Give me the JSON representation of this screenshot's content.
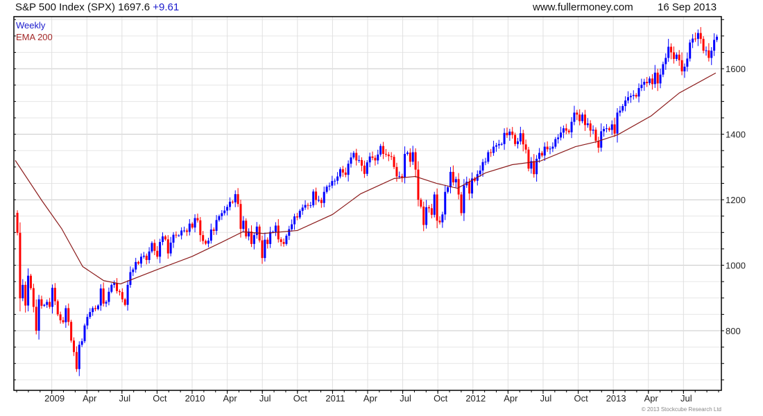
{
  "header": {
    "instrument": "S&P 500 Index (SPX)",
    "last": "1697.6",
    "change": "+9.61",
    "site": "www.fullermoney.com",
    "date": "16 Sep 2013"
  },
  "copyright": "© 2013 Stockcube Research Ltd",
  "colors": {
    "up": "#0000ff",
    "down": "#ff0000",
    "ema": "#8b1a1a",
    "grid": "#dddddd"
  },
  "chart_data": {
    "type": "candlestick",
    "title": "S&P 500 Index (SPX)",
    "legend": [
      "Weekly",
      "EMA 200"
    ],
    "legend_position": "top-left",
    "ylim": [
      618,
      1759
    ],
    "xlim": [
      2008.73,
      2013.77
    ],
    "y_ticks": [
      800,
      1000,
      1200,
      1400,
      1600
    ],
    "y_axis_side": "right",
    "x_ticks": [
      {
        "label": "2009",
        "x": 2009.0
      },
      {
        "label": "Apr",
        "x": 2009.25
      },
      {
        "label": "Jul",
        "x": 2009.5
      },
      {
        "label": "Oct",
        "x": 2009.75
      },
      {
        "label": "2010",
        "x": 2010.0
      },
      {
        "label": "Apr",
        "x": 2010.25
      },
      {
        "label": "Jul",
        "x": 2010.5
      },
      {
        "label": "Oct",
        "x": 2010.75
      },
      {
        "label": "2011",
        "x": 2011.0
      },
      {
        "label": "Apr",
        "x": 2011.25
      },
      {
        "label": "Jul",
        "x": 2011.5
      },
      {
        "label": "Oct",
        "x": 2011.75
      },
      {
        "label": "2012",
        "x": 2012.0
      },
      {
        "label": "Apr",
        "x": 2012.25
      },
      {
        "label": "Jul",
        "x": 2012.5
      },
      {
        "label": "Oct",
        "x": 2012.75
      },
      {
        "label": "2013",
        "x": 2013.0
      },
      {
        "label": "Apr",
        "x": 2013.25
      },
      {
        "label": "Jul",
        "x": 2013.5
      }
    ],
    "weekly_start": 2008.755,
    "first_open": 1160,
    "weekly_close": [
      1099,
      899,
      940,
      877,
      968,
      930,
      873,
      800,
      896,
      876,
      879,
      888,
      873,
      931,
      890,
      850,
      832,
      826,
      869,
      827,
      770,
      735,
      683,
      757,
      768,
      816,
      842,
      857,
      869,
      866,
      877,
      929,
      883,
      888,
      919,
      940,
      946,
      921,
      918,
      896,
      879,
      940,
      979,
      987,
      1010,
      1005,
      1026,
      1029,
      1016,
      1042,
      1068,
      1044,
      1026,
      1071,
      1088,
      1079,
      1036,
      1069,
      1093,
      1091,
      1091,
      1106,
      1106,
      1102,
      1127,
      1115,
      1144,
      1137,
      1092,
      1074,
      1066,
      1075,
      1109,
      1105,
      1138,
      1150,
      1159,
      1167,
      1178,
      1194,
      1192,
      1217,
      1187,
      1111,
      1136,
      1088,
      1103,
      1065,
      1092,
      1118,
      1076,
      1022,
      1078,
      1065,
      1102,
      1102,
      1121,
      1079,
      1071,
      1065,
      1090,
      1110,
      1125,
      1149,
      1146,
      1166,
      1176,
      1184,
      1183,
      1183,
      1225,
      1199,
      1199,
      1190,
      1224,
      1240,
      1243,
      1257,
      1258,
      1271,
      1293,
      1283,
      1276,
      1310,
      1329,
      1343,
      1320,
      1321,
      1304,
      1279,
      1314,
      1332,
      1328,
      1320,
      1338,
      1364,
      1340,
      1338,
      1333,
      1331,
      1300,
      1271,
      1272,
      1268,
      1340,
      1344,
      1316,
      1345,
      1292,
      1200,
      1179,
      1123,
      1177,
      1174,
      1154,
      1216,
      1136,
      1131,
      1155,
      1224,
      1238,
      1285,
      1253,
      1263,
      1216,
      1159,
      1244,
      1255,
      1219,
      1265,
      1258,
      1278,
      1289,
      1315,
      1316,
      1345,
      1343,
      1362,
      1366,
      1370,
      1370,
      1404,
      1397,
      1408,
      1398,
      1370,
      1378,
      1403,
      1369,
      1353,
      1295,
      1318,
      1278,
      1325,
      1343,
      1335,
      1362,
      1354,
      1356,
      1362,
      1385,
      1390,
      1405,
      1418,
      1411,
      1406,
      1438,
      1466,
      1460,
      1440,
      1460,
      1428,
      1433,
      1411,
      1414,
      1380,
      1359,
      1409,
      1416,
      1418,
      1413,
      1430,
      1402,
      1466,
      1472,
      1486,
      1503,
      1513,
      1517,
      1520,
      1515,
      1541,
      1551,
      1560,
      1556,
      1570,
      1553,
      1588,
      1555,
      1582,
      1614,
      1633,
      1667,
      1650,
      1630,
      1643,
      1626,
      1592,
      1606,
      1631,
      1680,
      1692,
      1691,
      1709,
      1691,
      1655,
      1656,
      1633,
      1655,
      1688,
      1697.6
    ],
    "ema200": {
      "x": [
        2008.74,
        2008.93,
        2009.07,
        2009.22,
        2009.37,
        2009.49,
        2009.74,
        2010.0,
        2010.21,
        2010.36,
        2010.51,
        2010.75,
        2011.0,
        2011.2,
        2011.44,
        2011.59,
        2011.74,
        2011.89,
        2012.09,
        2012.28,
        2012.48,
        2012.73,
        2012.88,
        2013.03,
        2013.27,
        2013.47,
        2013.73
      ],
      "y": [
        1320,
        1197,
        1112,
        996,
        953,
        943,
        985,
        1027,
        1070,
        1102,
        1097,
        1106,
        1155,
        1218,
        1265,
        1271,
        1250,
        1235,
        1282,
        1307,
        1318,
        1362,
        1377,
        1398,
        1456,
        1526,
        1587
      ]
    }
  }
}
